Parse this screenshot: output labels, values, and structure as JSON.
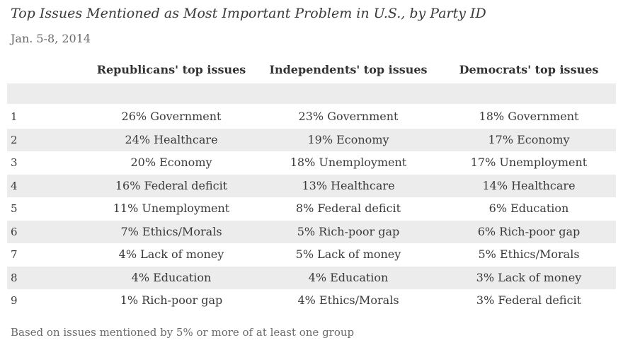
{
  "title": "Top Issues Mentioned as Most Important Problem in U.S., by Party ID",
  "subtitle": "Jan. 5-8, 2014",
  "columns": [
    "Republicans' top issues",
    "Independents' top issues",
    "Democrats' top issues"
  ],
  "rows": [
    {
      "rank": "1",
      "rep": "26%  Government",
      "ind": "23%  Government",
      "dem": "18%  Government"
    },
    {
      "rank": "2",
      "rep": "24%  Healthcare",
      "ind": "19%  Economy",
      "dem": "17%  Economy"
    },
    {
      "rank": "3",
      "rep": "20%  Economy",
      "ind": "18%  Unemployment",
      "dem": "17%  Unemployment"
    },
    {
      "rank": "4",
      "rep": "16%  Federal deficit",
      "ind": "13%  Healthcare",
      "dem": "14%  Healthcare"
    },
    {
      "rank": "5",
      "rep": "11%  Unemployment",
      "ind": "8%  Federal deficit",
      "dem": "6%  Education"
    },
    {
      "rank": "6",
      "rep": "7% Ethics/Morals",
      "ind": "5% Rich-poor gap",
      "dem": "6%  Rich-poor gap"
    },
    {
      "rank": "7",
      "rep": "4%  Lack of money",
      "ind": "5% Lack of money",
      "dem": "5%  Ethics/Morals"
    },
    {
      "rank": "8",
      "rep": "4%  Education",
      "ind": "4%  Education",
      "dem": "3%  Lack of money"
    },
    {
      "rank": "9",
      "rep": "1%  Rich-poor gap",
      "ind": "4% Ethics/Morals",
      "dem": "3%  Federal deficit"
    }
  ],
  "footnote": "Based on issues mentioned by 5% or more of at least one group"
}
